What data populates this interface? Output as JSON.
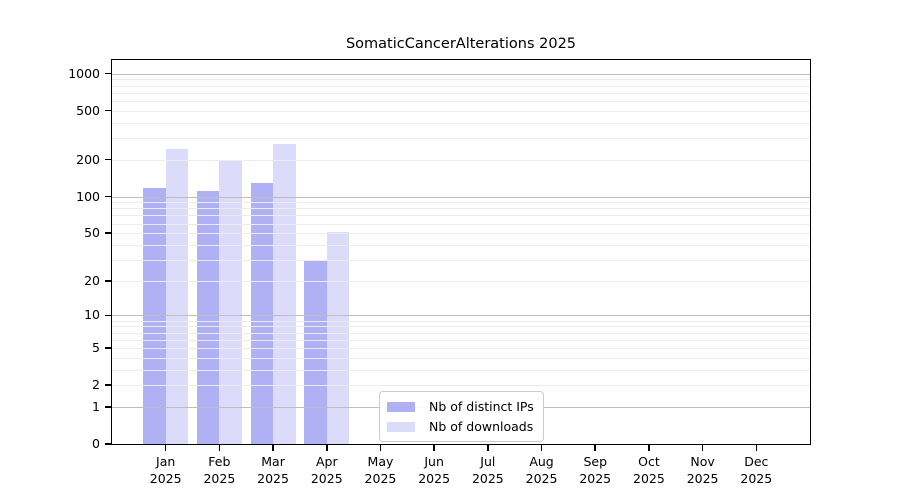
{
  "title": "SomaticCancerAlterations 2025",
  "chart_data": {
    "type": "bar",
    "title": "SomaticCancerAlterations 2025",
    "categories": [
      "Jan",
      "Feb",
      "Mar",
      "Apr",
      "May",
      "Jun",
      "Jul",
      "Aug",
      "Sep",
      "Oct",
      "Nov",
      "Dec"
    ],
    "year": "2025",
    "series": [
      {
        "name": "Nb of distinct IPs",
        "values": [
          118,
          111,
          129,
          30,
          null,
          null,
          null,
          null,
          null,
          null,
          null,
          null
        ],
        "alpha": 0.45
      },
      {
        "name": "Nb of downloads",
        "values": [
          243,
          197,
          270,
          51,
          null,
          null,
          null,
          null,
          null,
          null,
          null,
          null
        ],
        "alpha": 0.2
      }
    ],
    "bar_base_color": "#5050e6",
    "yscale": "log10(value+1)",
    "ylim": [
      0,
      1290
    ],
    "ytick_labels": [
      "0",
      "1",
      "2",
      "5",
      "10",
      "20",
      "50",
      "100",
      "200",
      "500",
      "1000"
    ],
    "grid": {
      "major_values": [
        1,
        10,
        100,
        1000
      ],
      "major_color": "#bdbdbd",
      "minor_color": "#ececec"
    },
    "legend_position": "inside-bottom-center",
    "xlabel": "",
    "ylabel": ""
  }
}
